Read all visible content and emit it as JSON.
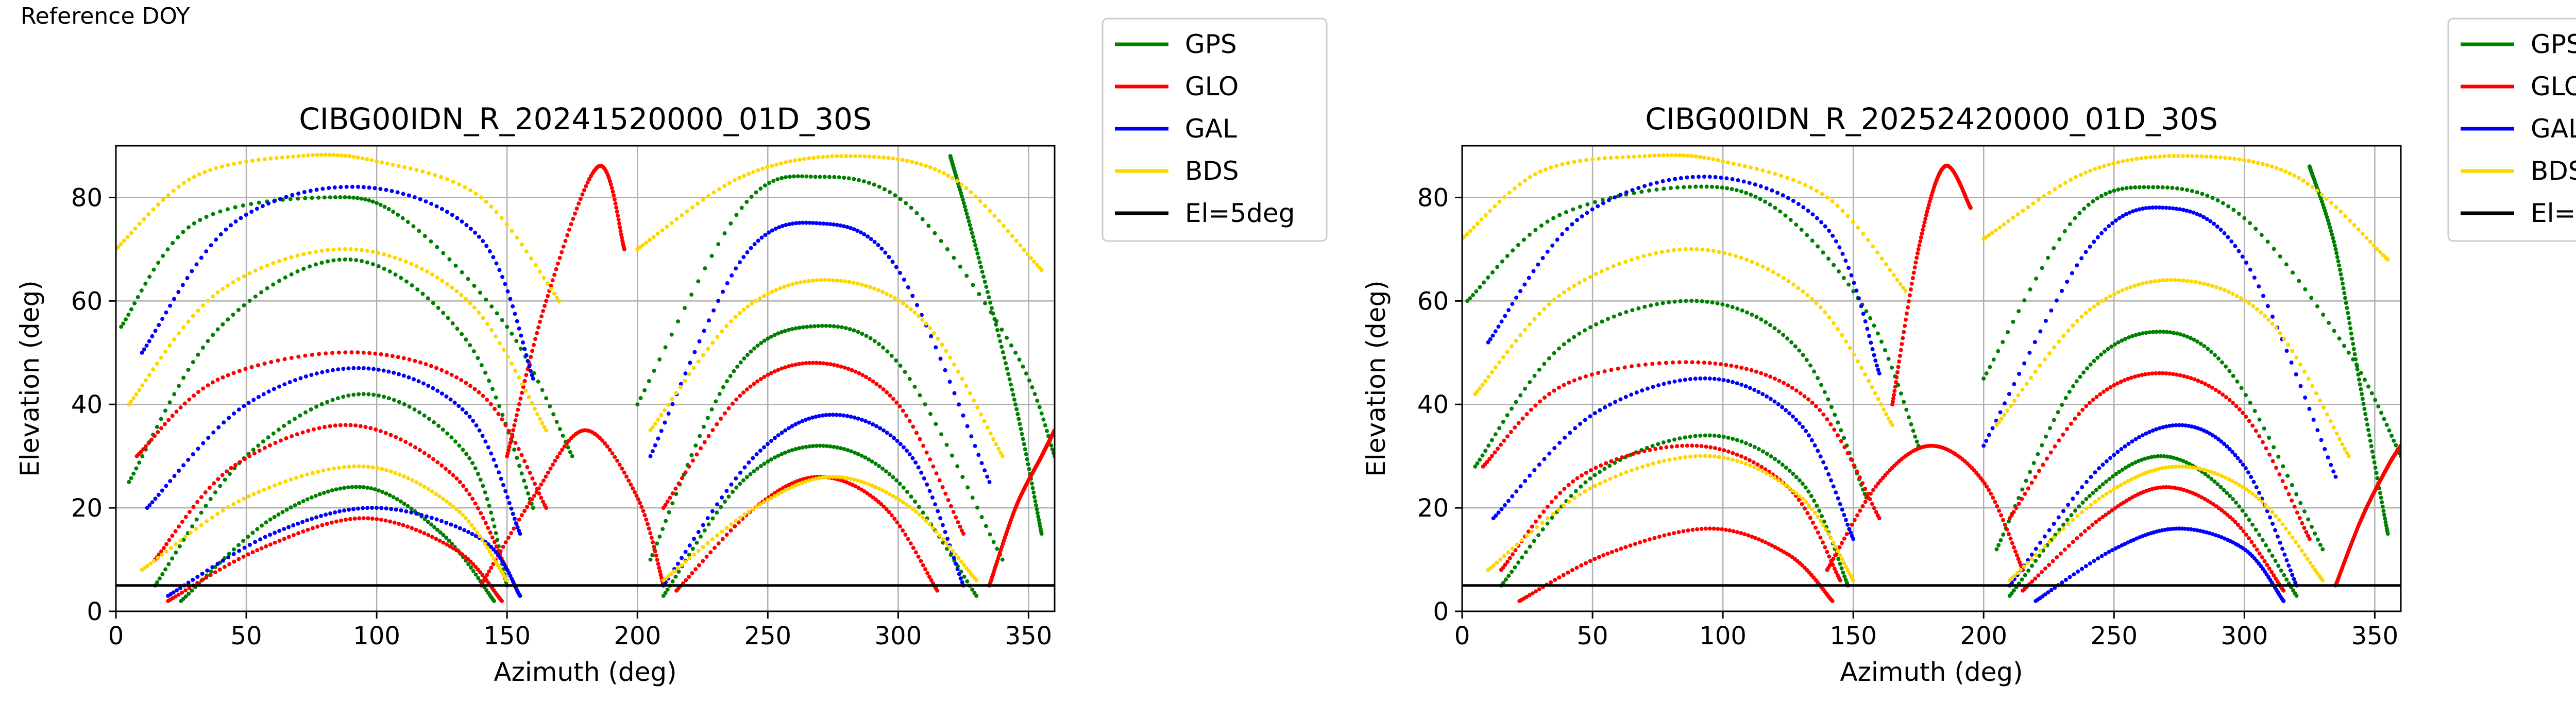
{
  "page_label": "Reference DOY",
  "colors": {
    "GPS": "#008000",
    "GLO": "#ff0000",
    "GAL": "#0000ff",
    "BDS": "#ffd700",
    "El=5deg": "#000000",
    "grid": "#b0b0b0"
  },
  "legend_entries": [
    "GPS",
    "GLO",
    "GAL",
    "BDS",
    "El=5deg"
  ],
  "chart_data": [
    {
      "type": "scatter",
      "title": "CIBG00IDN_R_20241520000_01D_30S",
      "xlabel": "Azimuth (deg)",
      "ylabel": "Elevation (deg)",
      "xlim": [
        0,
        360
      ],
      "ylim": [
        0,
        90
      ],
      "xticks": [
        0,
        50,
        100,
        150,
        200,
        250,
        300,
        350
      ],
      "yticks": [
        0,
        20,
        40,
        60,
        80
      ],
      "grid": true,
      "legend_placement": "outside upper right",
      "reference_line": {
        "name": "El=5deg",
        "y": 5
      },
      "series": [
        {
          "name": "GPS",
          "arcs": [
            {
              "az": [
                2,
                30,
                80,
                110,
                150,
                175
              ],
              "el": [
                55,
                75,
                80,
                76,
                55,
                30
              ]
            },
            {
              "az": [
                5,
                40,
                90,
                135,
                160
              ],
              "el": [
                25,
                55,
                68,
                52,
                20
              ]
            },
            {
              "az": [
                15,
                50,
                95,
                135,
                150
              ],
              "el": [
                5,
                30,
                42,
                30,
                5
              ]
            },
            {
              "az": [
                25,
                60,
                95,
                125,
                145
              ],
              "el": [
                2,
                18,
                24,
                15,
                2
              ]
            },
            {
              "az": [
                200,
                240,
                270,
                305,
                345,
                360
              ],
              "el": [
                40,
                78,
                84,
                78,
                50,
                30
              ]
            },
            {
              "az": [
                205,
                235,
                265,
                300,
                340
              ],
              "el": [
                10,
                45,
                55,
                48,
                10
              ]
            },
            {
              "az": [
                210,
                240,
                270,
                300,
                330
              ],
              "el": [
                3,
                25,
                32,
                25,
                3
              ]
            },
            {
              "az": [
                355,
                345,
                330,
                320
              ],
              "el": [
                15,
                40,
                70,
                88
              ]
            }
          ]
        },
        {
          "name": "GLO",
          "arcs": [
            {
              "az": [
                8,
                40,
                95,
                140,
                165
              ],
              "el": [
                30,
                45,
                50,
                42,
                20
              ]
            },
            {
              "az": [
                15,
                45,
                90,
                130,
                150
              ],
              "el": [
                10,
                28,
                36,
                26,
                8
              ]
            },
            {
              "az": [
                20,
                55,
                95,
                130,
                148
              ],
              "el": [
                2,
                12,
                18,
                12,
                2
              ]
            },
            {
              "az": [
                140,
                160,
                180,
                200,
                210
              ],
              "el": [
                5,
                22,
                35,
                22,
                5
              ]
            },
            {
              "az": [
                150,
                165,
                185,
                195
              ],
              "el": [
                30,
                60,
                86,
                70
              ]
            },
            {
              "az": [
                210,
                240,
                270,
                300,
                325
              ],
              "el": [
                20,
                42,
                48,
                40,
                15
              ]
            },
            {
              "az": [
                215,
                245,
                270,
                295,
                315
              ],
              "el": [
                4,
                20,
                26,
                20,
                4
              ]
            },
            {
              "az": [
                335,
                345,
                355,
                360
              ],
              "el": [
                5,
                20,
                30,
                35
              ]
            }
          ]
        },
        {
          "name": "GAL",
          "arcs": [
            {
              "az": [
                10,
                45,
                95,
                140,
                160
              ],
              "el": [
                50,
                75,
                82,
                72,
                45
              ]
            },
            {
              "az": [
                12,
                50,
                95,
                135,
                155
              ],
              "el": [
                20,
                40,
                47,
                38,
                15
              ]
            },
            {
              "az": [
                20,
                60,
                100,
                140,
                155
              ],
              "el": [
                3,
                15,
                20,
                14,
                3
              ]
            },
            {
              "az": [
                205,
                240,
                270,
                300,
                335
              ],
              "el": [
                30,
                68,
                75,
                66,
                25
              ]
            },
            {
              "az": [
                210,
                245,
                275,
                305,
                325
              ],
              "el": [
                5,
                30,
                38,
                30,
                5
              ]
            }
          ]
        },
        {
          "name": "BDS",
          "arcs": [
            {
              "az": [
                0,
                30,
                70,
                100,
                140,
                170
              ],
              "el": [
                70,
                84,
                88,
                87,
                80,
                60
              ]
            },
            {
              "az": [
                5,
                40,
                90,
                135,
                165
              ],
              "el": [
                40,
                62,
                70,
                60,
                35
              ]
            },
            {
              "az": [
                10,
                50,
                95,
                130,
                150
              ],
              "el": [
                8,
                22,
                28,
                20,
                6
              ]
            },
            {
              "az": [
                200,
                240,
                280,
                320,
                355
              ],
              "el": [
                70,
                84,
                88,
                84,
                66
              ]
            },
            {
              "az": [
                205,
                240,
                275,
                310,
                340
              ],
              "el": [
                35,
                58,
                64,
                56,
                30
              ]
            },
            {
              "az": [
                210,
                245,
                275,
                305,
                330
              ],
              "el": [
                6,
                20,
                26,
                20,
                6
              ]
            }
          ]
        }
      ]
    },
    {
      "type": "scatter",
      "title": "CIBG00IDN_R_20252420000_01D_30S",
      "xlabel": "Azimuth (deg)",
      "ylabel": "Elevation (deg)",
      "xlim": [
        0,
        360
      ],
      "ylim": [
        0,
        90
      ],
      "xticks": [
        0,
        50,
        100,
        150,
        200,
        250,
        300,
        350
      ],
      "yticks": [
        0,
        20,
        40,
        60,
        80
      ],
      "grid": true,
      "legend_placement": "outside upper right",
      "reference_line": {
        "name": "El=5deg",
        "y": 5
      },
      "series": [
        {
          "name": "GPS",
          "arcs": [
            {
              "az": [
                2,
                35,
                85,
                120,
                155,
                175
              ],
              "el": [
                60,
                76,
                82,
                78,
                58,
                32
              ]
            },
            {
              "az": [
                5,
                40,
                90,
                130,
                155
              ],
              "el": [
                28,
                52,
                60,
                50,
                22
              ]
            },
            {
              "az": [
                15,
                50,
                95,
                130,
                148
              ],
              "el": [
                5,
                26,
                34,
                25,
                5
              ]
            },
            {
              "az": [
                200,
                235,
                265,
                300,
                340,
                360
              ],
              "el": [
                45,
                76,
                82,
                76,
                50,
                30
              ]
            },
            {
              "az": [
                205,
                235,
                265,
                295,
                330
              ],
              "el": [
                12,
                44,
                54,
                46,
                12
              ]
            },
            {
              "az": [
                210,
                240,
                268,
                295,
                320
              ],
              "el": [
                3,
                22,
                30,
                22,
                3
              ]
            },
            {
              "az": [
                355,
                345,
                335,
                325
              ],
              "el": [
                15,
                42,
                70,
                86
              ]
            }
          ]
        },
        {
          "name": "GLO",
          "arcs": [
            {
              "az": [
                8,
                40,
                95,
                135,
                160
              ],
              "el": [
                28,
                44,
                48,
                40,
                18
              ]
            },
            {
              "az": [
                15,
                45,
                90,
                125,
                145
              ],
              "el": [
                8,
                26,
                32,
                24,
                6
              ]
            },
            {
              "az": [
                22,
                55,
                95,
                125,
                142
              ],
              "el": [
                2,
                11,
                16,
                11,
                2
              ]
            },
            {
              "az": [
                140,
                160,
                180,
                200,
                215
              ],
              "el": [
                8,
                25,
                32,
                25,
                8
              ]
            },
            {
              "az": [
                165,
                175,
                185,
                195
              ],
              "el": [
                40,
                70,
                86,
                78
              ]
            },
            {
              "az": [
                210,
                240,
                270,
                300,
                325
              ],
              "el": [
                18,
                40,
                46,
                38,
                14
              ]
            },
            {
              "az": [
                215,
                245,
                270,
                295,
                315
              ],
              "el": [
                4,
                18,
                24,
                18,
                4
              ]
            },
            {
              "az": [
                335,
                345,
                355,
                360
              ],
              "el": [
                5,
                18,
                28,
                32
              ]
            }
          ]
        },
        {
          "name": "GAL",
          "arcs": [
            {
              "az": [
                10,
                45,
                95,
                140,
                160
              ],
              "el": [
                52,
                76,
                84,
                74,
                46
              ]
            },
            {
              "az": [
                12,
                50,
                95,
                130,
                150
              ],
              "el": [
                18,
                38,
                45,
                36,
                14
              ]
            },
            {
              "az": [
                200,
                240,
                270,
                300,
                335
              ],
              "el": [
                32,
                70,
                78,
                68,
                26
              ]
            },
            {
              "az": [
                210,
                245,
                275,
                300,
                320
              ],
              "el": [
                5,
                28,
                36,
                28,
                5
              ]
            },
            {
              "az": [
                220,
                250,
                275,
                300,
                315
              ],
              "el": [
                2,
                12,
                16,
                12,
                2
              ]
            }
          ]
        },
        {
          "name": "BDS",
          "arcs": [
            {
              "az": [
                0,
                30,
                70,
                100,
                140,
                170
              ],
              "el": [
                72,
                85,
                88,
                87,
                80,
                62
              ]
            },
            {
              "az": [
                5,
                40,
                90,
                135,
                165
              ],
              "el": [
                42,
                62,
                70,
                60,
                36
              ]
            },
            {
              "az": [
                10,
                50,
                95,
                130,
                150
              ],
              "el": [
                8,
                24,
                30,
                22,
                6
              ]
            },
            {
              "az": [
                200,
                240,
                280,
                320,
                355
              ],
              "el": [
                72,
                85,
                88,
                84,
                68
              ]
            },
            {
              "az": [
                205,
                240,
                275,
                310,
                340
              ],
              "el": [
                36,
                58,
                64,
                56,
                30
              ]
            },
            {
              "az": [
                210,
                245,
                275,
                305,
                330
              ],
              "el": [
                6,
                22,
                28,
                22,
                6
              ]
            }
          ]
        }
      ]
    }
  ]
}
